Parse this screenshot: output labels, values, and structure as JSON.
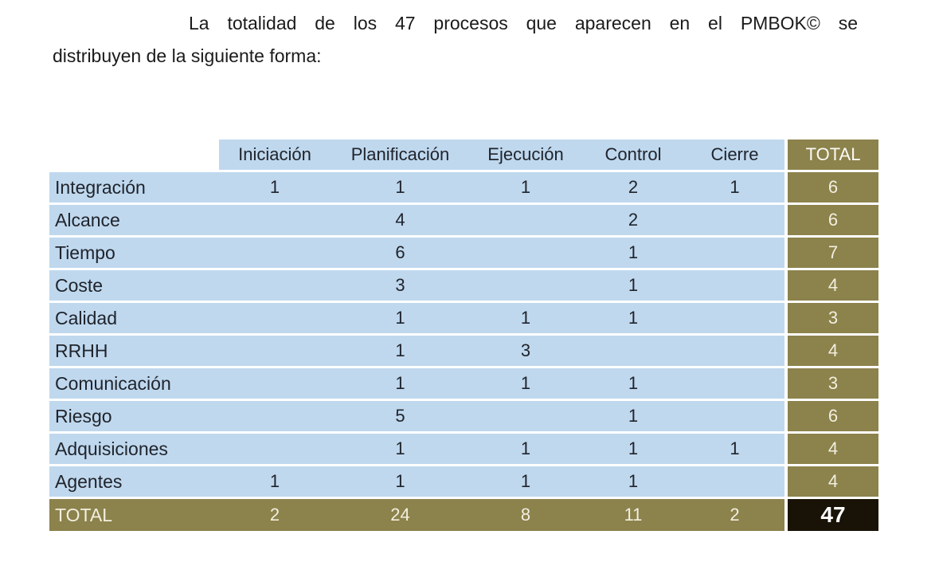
{
  "paragraph": {
    "line1": "La totalidad de los 47 procesos que aparecen en el PMBOK© se",
    "line2": "distribuyen de la siguiente forma:"
  },
  "table": {
    "columns": [
      "Iniciación",
      "Planificación",
      "Ejecución",
      "Control",
      "Cierre"
    ],
    "total_header": "TOTAL",
    "rows": [
      {
        "label": "Integración",
        "values": [
          "1",
          "1",
          "1",
          "2",
          "1"
        ],
        "total": "6"
      },
      {
        "label": "Alcance",
        "values": [
          "",
          "4",
          "",
          "2",
          ""
        ],
        "total": "6"
      },
      {
        "label": "Tiempo",
        "values": [
          "",
          "6",
          "",
          "1",
          ""
        ],
        "total": "7"
      },
      {
        "label": "Coste",
        "values": [
          "",
          "3",
          "",
          "1",
          ""
        ],
        "total": "4"
      },
      {
        "label": "Calidad",
        "values": [
          "",
          "1",
          "1",
          "1",
          ""
        ],
        "total": "3"
      },
      {
        "label": "RRHH",
        "values": [
          "",
          "1",
          "3",
          "",
          ""
        ],
        "total": "4"
      },
      {
        "label": "Comunicación",
        "values": [
          "",
          "1",
          "1",
          "1",
          ""
        ],
        "total": "3"
      },
      {
        "label": "Riesgo",
        "values": [
          "",
          "5",
          "",
          "1",
          ""
        ],
        "total": "6"
      },
      {
        "label": "Adquisiciones",
        "values": [
          "",
          "1",
          "1",
          "1",
          "1"
        ],
        "total": "4"
      },
      {
        "label": "Agentes",
        "values": [
          "1",
          "1",
          "1",
          "1",
          ""
        ],
        "total": "4"
      }
    ],
    "total_row": {
      "label": "TOTAL",
      "values": [
        "2",
        "24",
        "8",
        "11",
        "2"
      ],
      "total": "47"
    }
  },
  "colors": {
    "blue": "#bfd8ee",
    "olive": "#8c824c",
    "black_cell": "#191307",
    "dark_text": "#20242c",
    "cream_text": "#f2efdf"
  }
}
